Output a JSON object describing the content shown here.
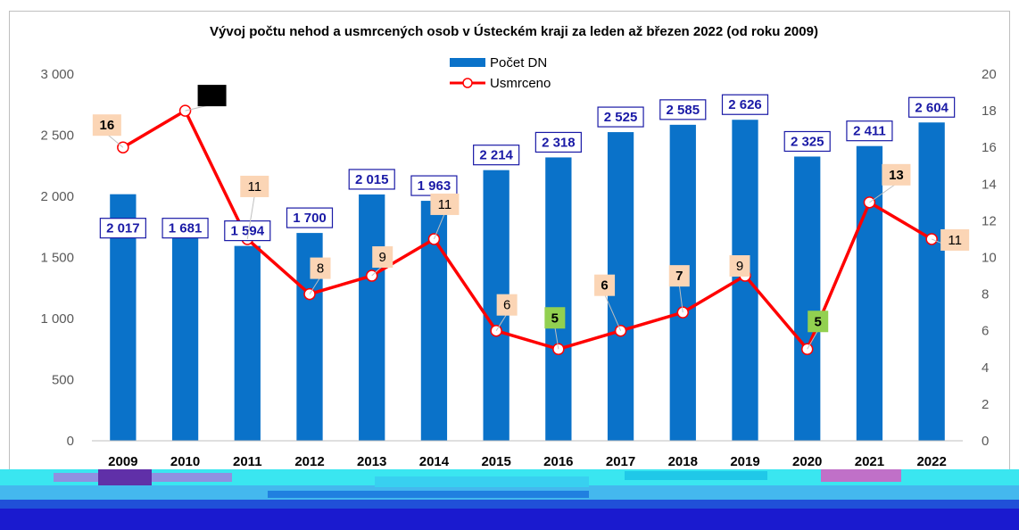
{
  "chart_data": {
    "type": "bar",
    "title": "Vývoj počtu nehod a usmrcených osob v Ústeckém kraji za  leden až březen 2022 (od roku 2009)",
    "categories": [
      "2009",
      "2010",
      "2011",
      "2012",
      "2013",
      "2014",
      "2015",
      "2016",
      "2017",
      "2018",
      "2019",
      "2020",
      "2021",
      "2022"
    ],
    "series": [
      {
        "name": "Počet DN",
        "type": "bar",
        "axis": "left",
        "color": "#0a72c9",
        "values": [
          2017,
          1681,
          1594,
          1700,
          2015,
          1963,
          2214,
          2318,
          2525,
          2585,
          2626,
          2325,
          2411,
          2604
        ],
        "labels": [
          "2 017",
          "1 681",
          "1 594",
          "1 700",
          "2 015",
          "1 963",
          "2 214",
          "2 318",
          "2 525",
          "2 585",
          "2 626",
          "2 325",
          "2 411",
          "2 604"
        ]
      },
      {
        "name": "Usmrceno",
        "type": "line",
        "axis": "right",
        "color": "#ff0000",
        "values": [
          16,
          18,
          11,
          8,
          9,
          11,
          6,
          5,
          6,
          7,
          9,
          5,
          13,
          11
        ],
        "labels": [
          "16",
          "18",
          "11",
          "8",
          "9",
          "11",
          "6",
          "5",
          "6",
          "7",
          "9",
          "5",
          "13",
          "11"
        ]
      }
    ],
    "y_left": {
      "min": 0,
      "max": 3000,
      "ticks": [
        0,
        500,
        1000,
        1500,
        2000,
        2500,
        3000
      ],
      "tick_labels": [
        "0",
        "500",
        "1 000",
        "1 500",
        "2 000",
        "2 500",
        "3 000"
      ]
    },
    "y_right": {
      "min": 0,
      "max": 20,
      "ticks": [
        0,
        2,
        4,
        6,
        8,
        10,
        12,
        14,
        16,
        18,
        20
      ],
      "tick_labels": [
        "0",
        "2",
        "4",
        "6",
        "8",
        "10",
        "12",
        "14",
        "16",
        "18",
        "20"
      ]
    },
    "legend_position": "top-center",
    "grid": false,
    "label_colors": {
      "bar_label_border": "#1a1aa6",
      "line_label_bg_default": "#fbd5b5",
      "line_label_bg_max": "#000000",
      "line_label_bg_min": "#92d050"
    }
  }
}
